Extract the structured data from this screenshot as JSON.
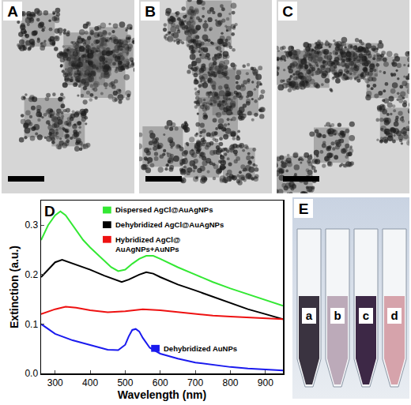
{
  "image_panels": [
    {
      "label": "A"
    },
    {
      "label": "B"
    },
    {
      "label": "C"
    }
  ],
  "chart_data": {
    "type": "line",
    "panel_label": "D",
    "x_label": "Wavelength (nm)",
    "y_label": "Extinction (a.u.)",
    "xlim": [
      260,
      950
    ],
    "xticks": [
      300,
      400,
      500,
      600,
      700,
      800,
      900
    ],
    "ylim": [
      0,
      0.35
    ],
    "yticks": [
      {
        "value": 0,
        "label": "0.0"
      },
      0.1,
      0.2,
      0.3
    ],
    "grid": false,
    "series": [
      {
        "name": "Dispersed AgCl@AuAgNPs",
        "color": "#33e833",
        "x": [
          260,
          280,
          300,
          315,
          330,
          350,
          380,
          400,
          430,
          460,
          480,
          500,
          520,
          540,
          560,
          580,
          600,
          650,
          700,
          750,
          800,
          850,
          900,
          950
        ],
        "values": [
          0.27,
          0.3,
          0.32,
          0.328,
          0.32,
          0.3,
          0.27,
          0.255,
          0.235,
          0.215,
          0.207,
          0.21,
          0.222,
          0.232,
          0.238,
          0.238,
          0.232,
          0.215,
          0.2,
          0.185,
          0.172,
          0.16,
          0.148,
          0.137
        ]
      },
      {
        "name": "Dehybridized AgCl@AuAgNPs",
        "color": "#000000",
        "x": [
          260,
          280,
          300,
          320,
          340,
          360,
          400,
          440,
          470,
          490,
          510,
          540,
          560,
          580,
          600,
          650,
          700,
          750,
          800,
          850,
          900,
          950
        ],
        "values": [
          0.195,
          0.21,
          0.225,
          0.23,
          0.225,
          0.22,
          0.21,
          0.198,
          0.19,
          0.185,
          0.19,
          0.2,
          0.205,
          0.202,
          0.195,
          0.18,
          0.168,
          0.155,
          0.142,
          0.13,
          0.12,
          0.11
        ]
      },
      {
        "name": "Hybridized AgCl@ AuAgNPs+AuNPs",
        "color": "#ee1111",
        "x": [
          260,
          300,
          330,
          360,
          400,
          450,
          500,
          550,
          600,
          650,
          700,
          750,
          800,
          850,
          900,
          950
        ],
        "values": [
          0.12,
          0.13,
          0.135,
          0.133,
          0.128,
          0.124,
          0.126,
          0.13,
          0.128,
          0.124,
          0.12,
          0.117,
          0.115,
          0.113,
          0.111,
          0.11
        ]
      },
      {
        "name": "Dehybridized AuNPs",
        "color": "#1a1aee",
        "x": [
          260,
          280,
          300,
          350,
          400,
          450,
          480,
          500,
          510,
          520,
          530,
          540,
          550,
          570,
          600,
          650,
          700,
          750,
          800,
          850,
          900,
          950
        ],
        "values": [
          0.1,
          0.09,
          0.08,
          0.067,
          0.058,
          0.048,
          0.047,
          0.058,
          0.075,
          0.088,
          0.09,
          0.085,
          0.072,
          0.052,
          0.04,
          0.03,
          0.022,
          0.017,
          0.013,
          0.01,
          0.008,
          0.006
        ]
      }
    ]
  },
  "photo_panel": {
    "label": "E",
    "vials": [
      "a",
      "b",
      "c",
      "d"
    ]
  }
}
